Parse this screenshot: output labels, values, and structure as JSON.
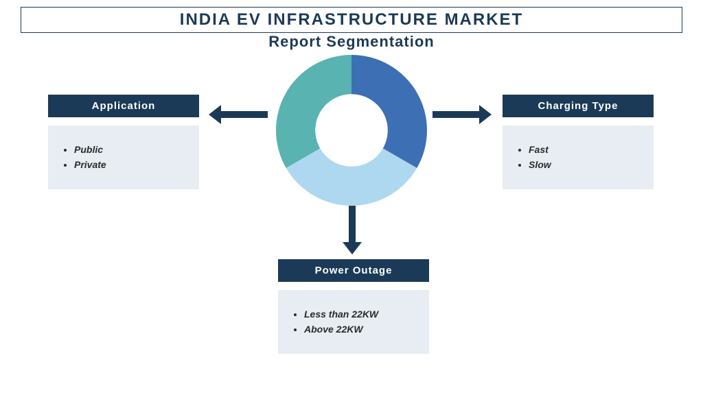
{
  "title": "INDIA EV INFRASTRUCTURE MARKET",
  "subtitle": "Report Segmentation",
  "donut": {
    "type": "pie",
    "slices": [
      {
        "start": 0,
        "end": 120,
        "color": "#3d6fb4"
      },
      {
        "start": 120,
        "end": 240,
        "color": "#aed8f0"
      },
      {
        "start": 240,
        "end": 360,
        "color": "#58b3b1"
      }
    ],
    "inner_ratio": 0.48,
    "center_color": "#ffffff"
  },
  "segments": {
    "left": {
      "header": "Application",
      "items": [
        "Public",
        "Private"
      ]
    },
    "right": {
      "header": "Charging Type",
      "items": [
        "Fast",
        "Slow"
      ]
    },
    "bottom": {
      "header": "Power Outage",
      "items": [
        "Less than 22KW",
        "Above 22KW"
      ]
    }
  },
  "colors": {
    "brand_dark": "#1b3a57",
    "body_bg": "#e7edf2"
  }
}
